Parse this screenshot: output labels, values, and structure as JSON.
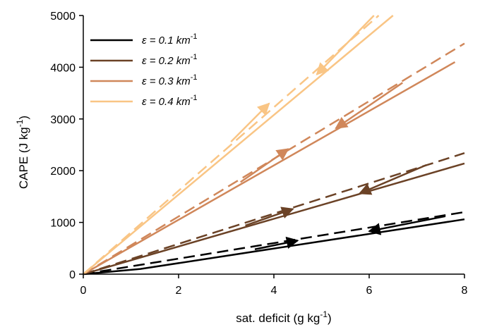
{
  "chart_data": {
    "type": "line",
    "xlabel": "sat. deficit   (g  kg",
    "xlabel_sup": "-1",
    "xlabel_tail": ")",
    "ylabel": "CAPE (J kg",
    "ylabel_sup": "-1",
    "ylabel_tail": ")",
    "xlim": [
      0,
      8
    ],
    "ylim": [
      0,
      5000
    ],
    "xticks": [
      "0",
      "2",
      "4",
      "6",
      "8"
    ],
    "yticks": [
      "0",
      "1000",
      "2000",
      "3000",
      "4000",
      "5000"
    ],
    "xtick_values": [
      0,
      2,
      4,
      6,
      8
    ],
    "ytick_values": [
      0,
      1000,
      2000,
      3000,
      4000,
      5000
    ],
    "grid": false,
    "legend_position": "top-left",
    "series": [
      {
        "name_prefix": "ε =  0.1 km",
        "name_sup": "-1",
        "color": "#000000",
        "solid": [
          [
            0,
            0
          ],
          [
            1.2,
            100
          ],
          [
            8,
            1060
          ]
        ],
        "dashed": [
          [
            0,
            0
          ],
          [
            8,
            1200
          ]
        ],
        "arrows": [
          {
            "from": [
              3.6,
              480
            ],
            "to": [
              4.5,
              650
            ]
          },
          {
            "from": [
              7.6,
              1120
            ],
            "to": [
              6.0,
              830
            ]
          }
        ]
      },
      {
        "name_prefix": "ε =  0.2 km",
        "name_sup": "-1",
        "color": "#6b4226",
        "solid": [
          [
            0,
            0
          ],
          [
            8,
            2140
          ]
        ],
        "dashed": [
          [
            0,
            0
          ],
          [
            8,
            2340
          ]
        ],
        "arrows": [
          {
            "from": [
              3.4,
              940
            ],
            "to": [
              4.4,
              1260
            ]
          },
          {
            "from": [
              7.2,
              2110
            ],
            "to": [
              5.8,
              1560
            ]
          }
        ]
      },
      {
        "name_prefix": "ε =  0.3 km",
        "name_sup": "-1",
        "color": "#d0875a",
        "solid": [
          [
            0,
            0
          ],
          [
            7.8,
            4100
          ]
        ],
        "dashed": [
          [
            0,
            0
          ],
          [
            8,
            4460
          ]
        ],
        "arrows": [
          {
            "from": [
              3.3,
              1780
            ],
            "to": [
              4.3,
              2420
            ]
          },
          {
            "from": [
              6.7,
              3700
            ],
            "to": [
              5.3,
              2820
            ]
          }
        ]
      },
      {
        "name_prefix": "ε =  0.4 km",
        "name_sup": "-1",
        "color": "#f9c585",
        "solid": [
          [
            0,
            0
          ],
          [
            6.5,
            5000
          ]
        ],
        "dashed": [
          [
            0,
            0
          ],
          [
            6.2,
            5000
          ]
        ],
        "arrows": [
          {
            "from": [
              3.1,
              2560
            ],
            "to": [
              3.9,
              3300
            ]
          },
          {
            "from": [
              6.1,
              5000
            ],
            "to": [
              4.9,
              3860
            ]
          }
        ]
      }
    ]
  }
}
